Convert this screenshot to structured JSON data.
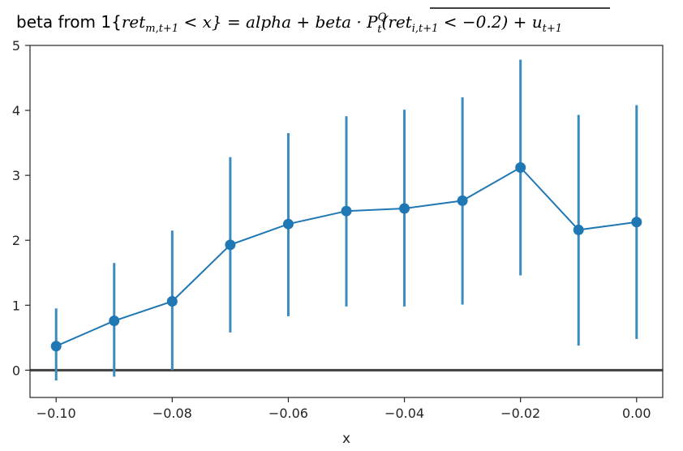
{
  "chart_data": {
    "type": "line",
    "title": {
      "prefix": "beta from 1{",
      "ret1": "ret",
      "ret1_sub": "m,t+1",
      "cond1": " < x} = alpha + beta · ",
      "p": "P",
      "p_sup": "Q",
      "p_sub": "t",
      "paren_open": "(ret",
      "ret2_sub": "i,t+1",
      "cond2": " < −0.2)",
      "plus": " + u",
      "u_sub": "t+1"
    },
    "xlabel": "x",
    "ylabel": "",
    "xlim": [
      -0.1045,
      0.0045
    ],
    "ylim": [
      -0.42,
      5.0
    ],
    "x_ticks": [
      -0.1,
      -0.08,
      -0.06,
      -0.04,
      -0.02,
      0.0
    ],
    "x_tick_labels": [
      "−0.10",
      "−0.08",
      "−0.06",
      "−0.04",
      "−0.02",
      "0.00"
    ],
    "y_ticks": [
      0,
      1,
      2,
      3,
      4,
      5
    ],
    "y_tick_labels": [
      "0",
      "1",
      "2",
      "3",
      "4",
      "5"
    ],
    "grid": false,
    "reference_line_y": 0,
    "colors": {
      "series": "#1f77b4",
      "errorbar": "#3a8bc0",
      "refline": "#3f3f3f"
    },
    "series": [
      {
        "x": [
          -0.1,
          -0.09,
          -0.08,
          -0.07,
          -0.06,
          -0.05,
          -0.04,
          -0.03,
          -0.02,
          -0.01,
          0.0
        ],
        "y": [
          0.37,
          0.76,
          1.06,
          1.93,
          2.25,
          2.45,
          2.49,
          2.61,
          3.12,
          2.16,
          2.28
        ],
        "err_low": [
          -0.16,
          -0.1,
          0.0,
          0.58,
          0.83,
          0.98,
          0.98,
          1.01,
          1.46,
          0.38,
          0.48
        ],
        "err_high": [
          0.95,
          1.65,
          2.15,
          3.28,
          3.65,
          3.91,
          4.01,
          4.2,
          4.78,
          3.93,
          4.08
        ]
      }
    ]
  }
}
